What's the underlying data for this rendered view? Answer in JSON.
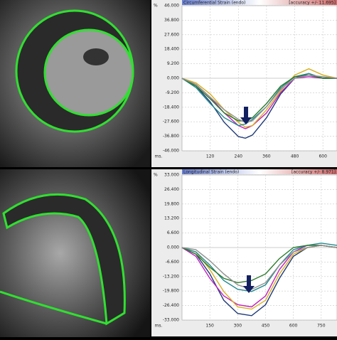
{
  "chart_data": [
    {
      "type": "line",
      "title": "Circumferential Strain (endo)",
      "subtitle": "[accuracy +/- 11.695]",
      "xlabel": "ms.",
      "ylabel": "%",
      "x": [
        0,
        60,
        120,
        180,
        240,
        270,
        300,
        360,
        420,
        480,
        540,
        600,
        660
      ],
      "xlim": [
        0,
        660
      ],
      "xticks": [
        120,
        240,
        360,
        480,
        600
      ],
      "ylim": [
        -46,
        46
      ],
      "yticks": [
        {
          "value": 46,
          "label": "46.000"
        },
        {
          "value": 36.8,
          "label": "36.800"
        },
        {
          "value": 27.6,
          "label": "27.600"
        },
        {
          "value": 18.4,
          "label": "18.400"
        },
        {
          "value": 9.2,
          "label": "9.200"
        },
        {
          "value": 0,
          "label": "0.000"
        },
        {
          "value": -9.2,
          "label": "-9.200"
        },
        {
          "value": -18.4,
          "label": "-18.400"
        },
        {
          "value": -27.6,
          "label": "-27.600"
        },
        {
          "value": -36.8,
          "label": "-36.800"
        },
        {
          "value": -46,
          "label": "-46.000"
        }
      ],
      "grid": true,
      "series": [
        {
          "color": "#1f3a78",
          "values": [
            0,
            -5,
            -15,
            -28,
            -37,
            -38,
            -36,
            -25,
            -10,
            0,
            3,
            0,
            0
          ]
        },
        {
          "color": "#c020c0",
          "values": [
            0,
            -4,
            -12,
            -22,
            -30,
            -32,
            -30,
            -22,
            -9,
            0,
            1,
            0,
            0
          ]
        },
        {
          "color": "#d8b020",
          "values": [
            0,
            -3,
            -10,
            -20,
            -28,
            -31,
            -30,
            -20,
            -8,
            2,
            6,
            2,
            0
          ]
        },
        {
          "color": "#208890",
          "values": [
            0,
            -6,
            -16,
            -25,
            -30,
            -29,
            -26,
            -18,
            -6,
            1,
            3,
            0,
            0
          ]
        },
        {
          "color": "#2a7a2a",
          "values": [
            0,
            -5,
            -13,
            -22,
            -27,
            -27,
            -25,
            -16,
            -5,
            1,
            2,
            0,
            0
          ]
        },
        {
          "color": "#909090",
          "values": [
            0,
            -4,
            -12,
            -20,
            -26,
            -28,
            -27,
            -18,
            -7,
            0,
            2,
            1,
            0
          ]
        }
      ]
    },
    {
      "type": "line",
      "title": "Longitudinal Strain (endo)",
      "subtitle": "[accuracy +/- 8.971]",
      "xlabel": "ms.",
      "ylabel": "%",
      "x": [
        0,
        75,
        150,
        225,
        300,
        375,
        450,
        525,
        600,
        675,
        750,
        835
      ],
      "xlim": [
        0,
        835
      ],
      "xticks": [
        150,
        300,
        450,
        600,
        750
      ],
      "ylim": [
        -33,
        33
      ],
      "yticks": [
        {
          "value": 33,
          "label": "33.000"
        },
        {
          "value": 26.4,
          "label": "26.400"
        },
        {
          "value": 19.8,
          "label": "19.800"
        },
        {
          "value": 13.2,
          "label": "13.200"
        },
        {
          "value": 6.6,
          "label": "6.600"
        },
        {
          "value": 0,
          "label": "0.000"
        },
        {
          "value": -6.6,
          "label": "-6.600"
        },
        {
          "value": -13.2,
          "label": "-13.200"
        },
        {
          "value": -19.8,
          "label": "-19.800"
        },
        {
          "value": -26.4,
          "label": "-26.400"
        },
        {
          "value": -33,
          "label": "-33.000"
        }
      ],
      "grid": true,
      "series": [
        {
          "color": "#1f3a78",
          "values": [
            0,
            -3,
            -12,
            -24,
            -30,
            -31,
            -26,
            -14,
            -4,
            0,
            1,
            0
          ]
        },
        {
          "color": "#c020c0",
          "values": [
            0,
            -4,
            -14,
            -22,
            -26,
            -27,
            -22,
            -10,
            -2,
            1,
            1,
            0
          ]
        },
        {
          "color": "#d8b020",
          "values": [
            0,
            -2,
            -10,
            -20,
            -27,
            -28,
            -24,
            -12,
            -3,
            0,
            1,
            0
          ]
        },
        {
          "color": "#208890",
          "values": [
            0,
            -2,
            -8,
            -15,
            -19,
            -20,
            -17,
            -8,
            -1,
            1,
            2,
            1
          ]
        },
        {
          "color": "#2a7a2a",
          "values": [
            0,
            -3,
            -9,
            -14,
            -16,
            -15,
            -12,
            -5,
            0,
            1,
            1,
            0
          ]
        },
        {
          "color": "#909090",
          "values": [
            0,
            -1,
            -6,
            -12,
            -17,
            -19,
            -16,
            -8,
            -2,
            0,
            1,
            0
          ]
        }
      ]
    }
  ]
}
